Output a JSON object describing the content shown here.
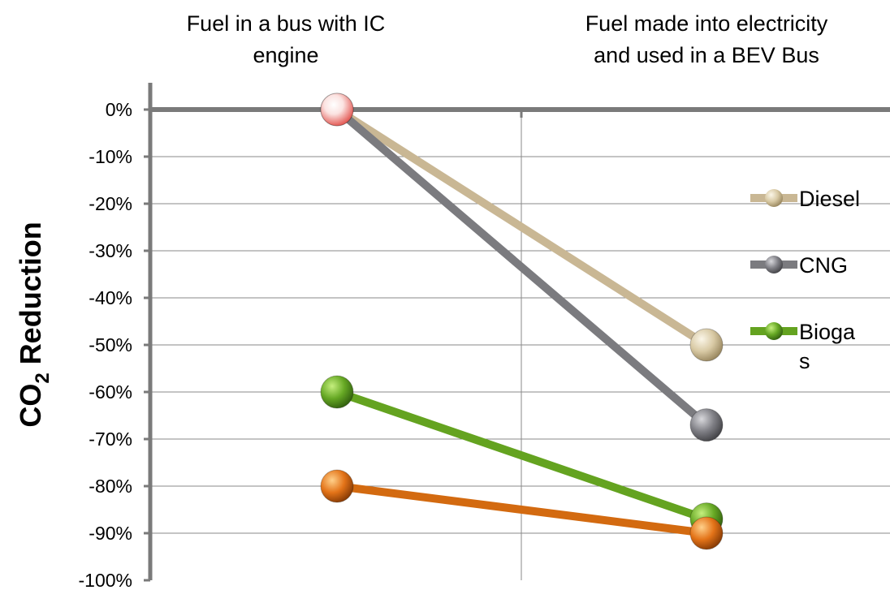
{
  "chart_data": {
    "type": "line",
    "categories": [
      "Fuel in a bus with IC engine",
      "Fuel made into electricity and used in a BEV Bus"
    ],
    "ylabel": {
      "main": "CO",
      "sub": "2",
      "rest": " Reduction"
    },
    "ylim": [
      -100,
      0
    ],
    "yticks": [
      0,
      -10,
      -20,
      -30,
      -40,
      -50,
      -60,
      -70,
      -80,
      -90,
      -100
    ],
    "ytick_labels": [
      "0%",
      "-10%",
      "-20%",
      "-30%",
      "-40%",
      "-50%",
      "-60%",
      "-70%",
      "-80%",
      "-90%",
      "-100%"
    ],
    "grid": true,
    "legend_position": "right",
    "series": [
      {
        "name": "Diesel",
        "values": [
          0,
          -50
        ],
        "color": "#c9b794"
      },
      {
        "name": "CNG",
        "values": [
          0,
          -67
        ],
        "color": "#7b7b7f"
      },
      {
        "name": "Biogas",
        "values": [
          -60,
          -87
        ],
        "color": "#64a320"
      },
      {
        "values": [
          -80,
          -90
        ],
        "color": "#d36a10"
      }
    ],
    "start_marker_color": "#f0a9a4"
  }
}
